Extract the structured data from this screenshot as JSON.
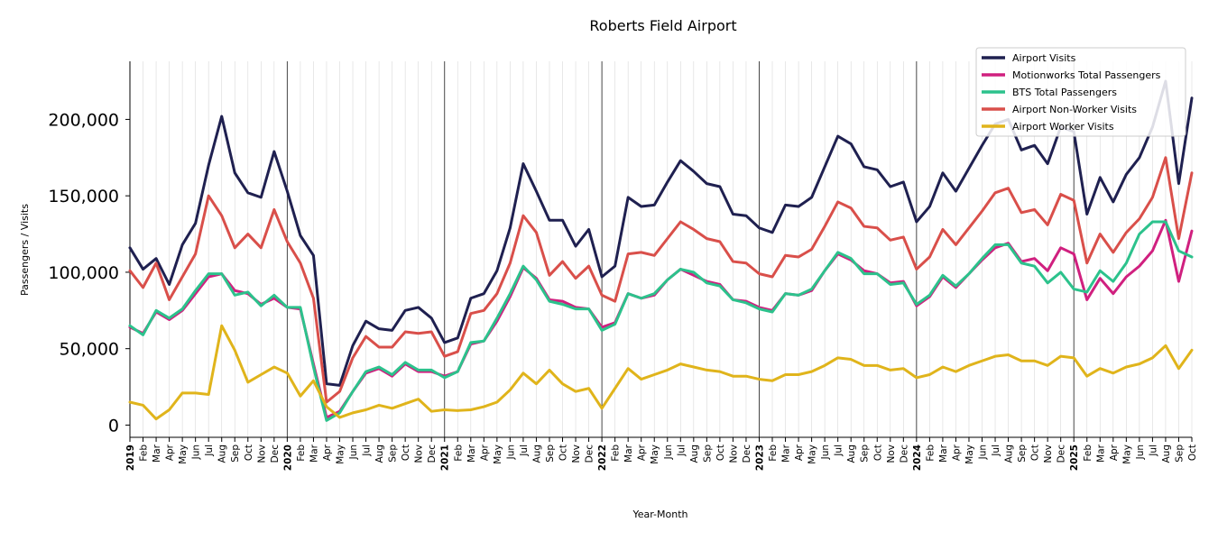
{
  "chart_data": {
    "type": "line",
    "title": "Roberts Field Airport",
    "xlabel": "Year-Month",
    "ylabel": "Passengers / Visits",
    "ylim": [
      -8000,
      238000
    ],
    "yticks": [
      0,
      50000,
      100000,
      150000,
      200000
    ],
    "ytick_labels": [
      "0",
      "50,000",
      "100,000",
      "150,000",
      "200,000"
    ],
    "grid": "vertical monthly gridlines, darker line at each January",
    "legend_position": "top-right",
    "x": [
      "2019-01",
      "2019-02",
      "2019-03",
      "2019-04",
      "2019-05",
      "2019-06",
      "2019-07",
      "2019-08",
      "2019-09",
      "2019-10",
      "2019-11",
      "2019-12",
      "2020-01",
      "2020-02",
      "2020-03",
      "2020-04",
      "2020-05",
      "2020-06",
      "2020-07",
      "2020-08",
      "2020-09",
      "2020-10",
      "2020-11",
      "2020-12",
      "2021-01",
      "2021-02",
      "2021-03",
      "2021-04",
      "2021-05",
      "2021-06",
      "2021-07",
      "2021-08",
      "2021-09",
      "2021-10",
      "2021-11",
      "2021-12",
      "2022-01",
      "2022-02",
      "2022-03",
      "2022-04",
      "2022-05",
      "2022-06",
      "2022-07",
      "2022-08",
      "2022-09",
      "2022-10",
      "2022-11",
      "2022-12",
      "2023-01",
      "2023-02",
      "2023-03",
      "2023-04",
      "2023-05",
      "2023-06",
      "2023-07",
      "2023-08",
      "2023-09",
      "2023-10",
      "2023-11",
      "2023-12",
      "2024-01",
      "2024-02",
      "2024-03",
      "2024-04",
      "2024-05",
      "2024-06",
      "2024-07",
      "2024-08",
      "2024-09",
      "2024-10",
      "2024-11",
      "2024-12",
      "2025-01",
      "2025-02",
      "2025-03",
      "2025-04",
      "2025-05",
      "2025-06",
      "2025-07",
      "2025-08",
      "2025-09",
      "2025-10"
    ],
    "xtick_labels": [
      "2019",
      "Feb",
      "Mar",
      "Apr",
      "May",
      "Jun",
      "Jul",
      "Aug",
      "Sep",
      "Oct",
      "Nov",
      "Dec",
      "2020",
      "Feb",
      "Mar",
      "Apr",
      "May",
      "Jun",
      "Jul",
      "Aug",
      "Sep",
      "Oct",
      "Nov",
      "Dec",
      "2021",
      "Feb",
      "Mar",
      "Apr",
      "May",
      "Jun",
      "Jul",
      "Aug",
      "Sep",
      "Oct",
      "Nov",
      "Dec",
      "2022",
      "Feb",
      "Mar",
      "Apr",
      "May",
      "Jun",
      "Jul",
      "Aug",
      "Sep",
      "Oct",
      "Nov",
      "Dec",
      "2023",
      "Feb",
      "Mar",
      "Apr",
      "May",
      "Jun",
      "Jul",
      "Aug",
      "Sep",
      "Oct",
      "Nov",
      "Dec",
      "2024",
      "Feb",
      "Mar",
      "Apr",
      "May",
      "Jun",
      "Jul",
      "Aug",
      "Sep",
      "Oct",
      "Nov",
      "Dec",
      "2025",
      "Feb",
      "Mar",
      "Apr",
      "May",
      "Jun",
      "Jul",
      "Aug",
      "Sep",
      "Oct"
    ],
    "series": [
      {
        "name": "Airport Visits",
        "color": "#1f2050",
        "values": [
          116000,
          102000,
          109000,
          92000,
          118000,
          132000,
          170000,
          202000,
          165000,
          152000,
          149000,
          179000,
          153000,
          124000,
          111000,
          27000,
          26000,
          52000,
          68000,
          63000,
          62000,
          75000,
          77000,
          70000,
          54000,
          57000,
          83000,
          86000,
          101000,
          129000,
          171000,
          153000,
          134000,
          134000,
          117000,
          128000,
          97000,
          104000,
          149000,
          143000,
          144000,
          159000,
          173000,
          166000,
          158000,
          156000,
          138000,
          137000,
          129000,
          126000,
          144000,
          143000,
          149000,
          169000,
          189000,
          184000,
          169000,
          167000,
          156000,
          159000,
          133000,
          143000,
          165000,
          153000,
          168000,
          183000,
          197000,
          200000,
          180000,
          183000,
          171000,
          195000,
          192000,
          138000,
          162000,
          146000,
          164000,
          175000,
          195000,
          225000,
          158000,
          214000
        ]
      },
      {
        "name": "Motionworks Total Passengers",
        "color": "#d0207f",
        "values": [
          64000,
          60000,
          74000,
          69000,
          75000,
          86000,
          97000,
          99000,
          88000,
          86000,
          79000,
          83000,
          77000,
          76000,
          40000,
          5000,
          9000,
          22000,
          34000,
          37000,
          32000,
          40000,
          35000,
          35000,
          32000,
          35000,
          53000,
          55000,
          68000,
          84000,
          103000,
          96000,
          82000,
          81000,
          77000,
          76000,
          64000,
          67000,
          86000,
          83000,
          85000,
          95000,
          102000,
          98000,
          94000,
          92000,
          82000,
          81000,
          77000,
          75000,
          86000,
          85000,
          88000,
          101000,
          112000,
          108000,
          101000,
          99000,
          93000,
          94000,
          78000,
          84000,
          97000,
          90000,
          99000,
          108000,
          116000,
          119000,
          107000,
          109000,
          101000,
          116000,
          112000,
          82000,
          96000,
          86000,
          97000,
          104000,
          114000,
          134000,
          94000,
          127000
        ]
      },
      {
        "name": "BTS Total Passengers",
        "color": "#2cc28c",
        "values": [
          65000,
          59000,
          75000,
          70000,
          76000,
          88000,
          99000,
          99000,
          85000,
          87000,
          78000,
          85000,
          77000,
          77000,
          38000,
          3000,
          8000,
          22000,
          35000,
          38000,
          33000,
          41000,
          36000,
          36000,
          31000,
          35000,
          54000,
          55000,
          70000,
          86000,
          104000,
          95000,
          81000,
          79000,
          76000,
          76000,
          62000,
          66000,
          86000,
          83000,
          86000,
          95000,
          102000,
          100000,
          93000,
          91000,
          82000,
          80000,
          76000,
          74000,
          86000,
          85000,
          89000,
          101000,
          113000,
          109000,
          99000,
          99000,
          92000,
          93000,
          79000,
          85000,
          98000,
          91000,
          99000,
          109000,
          118000,
          118000,
          106000,
          104000,
          93000,
          100000,
          89000,
          87000,
          101000,
          94000,
          106000,
          125000,
          133000,
          133000,
          114000,
          110000
        ]
      },
      {
        "name": "Airport Non-Worker Visits",
        "color": "#d94f4a",
        "values": [
          101000,
          90000,
          106000,
          82000,
          97000,
          112000,
          150000,
          137000,
          116000,
          125000,
          116000,
          141000,
          120000,
          106000,
          83000,
          15000,
          22000,
          44000,
          58000,
          51000,
          51000,
          61000,
          60000,
          61000,
          45000,
          48000,
          73000,
          75000,
          86000,
          106000,
          137000,
          126000,
          98000,
          107000,
          96000,
          104000,
          85000,
          81000,
          112000,
          113000,
          111000,
          122000,
          133000,
          128000,
          122000,
          120000,
          107000,
          106000,
          99000,
          97000,
          111000,
          110000,
          115000,
          130000,
          146000,
          142000,
          130000,
          129000,
          121000,
          123000,
          102000,
          110000,
          128000,
          118000,
          129000,
          140000,
          152000,
          155000,
          139000,
          141000,
          131000,
          151000,
          147000,
          106000,
          125000,
          113000,
          126000,
          135000,
          149000,
          175000,
          122000,
          165000
        ]
      },
      {
        "name": "Airport Worker Visits",
        "color": "#e0b41b",
        "values": [
          15000,
          13000,
          4000,
          10000,
          21000,
          21000,
          20000,
          65000,
          49000,
          28000,
          33000,
          38000,
          34000,
          19000,
          29000,
          12000,
          5000,
          8000,
          10000,
          13000,
          11000,
          14000,
          17000,
          9000,
          10000,
          9500,
          10000,
          12000,
          15000,
          23000,
          34000,
          27000,
          36000,
          27000,
          22000,
          24000,
          11000,
          24000,
          37000,
          30000,
          33000,
          36000,
          40000,
          38000,
          36000,
          35000,
          32000,
          32000,
          30000,
          29000,
          33000,
          33000,
          35000,
          39000,
          44000,
          43000,
          39000,
          39000,
          36000,
          37000,
          31000,
          33000,
          38000,
          35000,
          39000,
          42000,
          45000,
          46000,
          42000,
          42000,
          39000,
          45000,
          44000,
          32000,
          37000,
          34000,
          38000,
          40000,
          44000,
          52000,
          37000,
          49000
        ]
      }
    ]
  }
}
